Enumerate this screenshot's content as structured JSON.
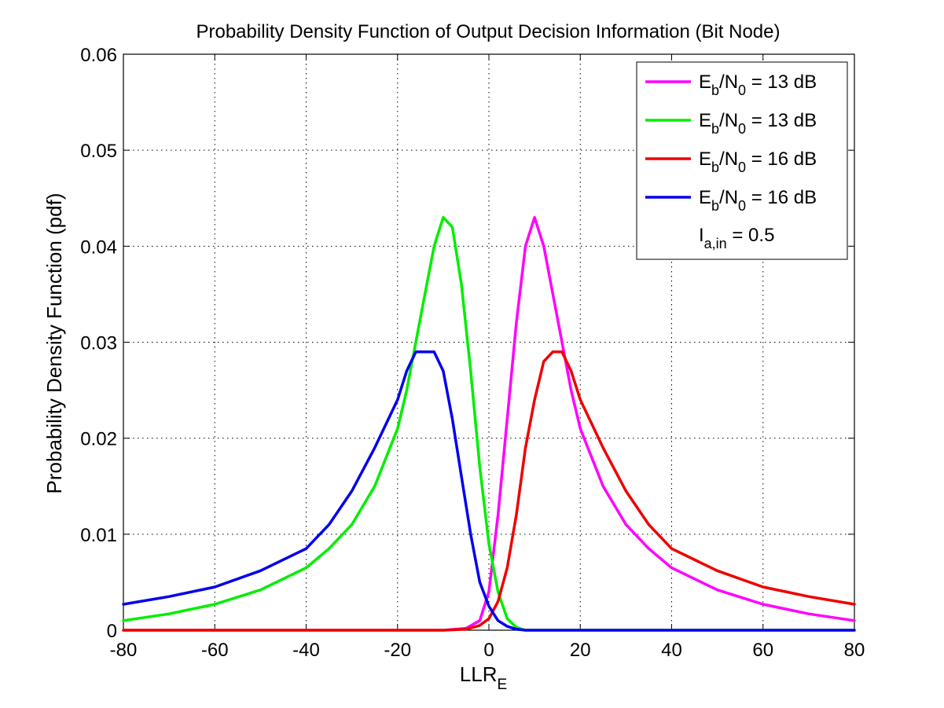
{
  "chart_data": {
    "type": "line",
    "title": "Probability Density Function of Output Decision Information (Bit Node)",
    "xlabel": "LLR",
    "xlabel_sub": "E",
    "ylabel": "Probability Density Function (pdf)",
    "xlim": [
      -80,
      80
    ],
    "ylim": [
      0,
      0.06
    ],
    "grid": true,
    "legend_position": "top-right",
    "x_ticks": [
      "-80",
      "-60",
      "-40",
      "-20",
      "0",
      "20",
      "40",
      "60",
      "80"
    ],
    "y_ticks": [
      "0",
      "0.01",
      "0.02",
      "0.03",
      "0.04",
      "0.05",
      "0.06"
    ],
    "series": [
      {
        "label_main": "E",
        "label_sub1": "b",
        "label_mid": "/N",
        "label_sub2": "0",
        "label_tail": " = 13 dB",
        "color": "#ff00ff",
        "x": [
          -80,
          -20,
          -10,
          -5,
          -2,
          0,
          2,
          4,
          6,
          8,
          10,
          12,
          14,
          16,
          18,
          20,
          25,
          30,
          35,
          40,
          50,
          60,
          70,
          80
        ],
        "y": [
          0,
          0,
          0,
          0.0002,
          0.001,
          0.004,
          0.012,
          0.022,
          0.032,
          0.04,
          0.043,
          0.04,
          0.035,
          0.03,
          0.025,
          0.021,
          0.015,
          0.011,
          0.0085,
          0.0065,
          0.0042,
          0.0027,
          0.0017,
          0.001
        ]
      },
      {
        "label_main": "E",
        "label_sub1": "b",
        "label_mid": "/N",
        "label_sub2": "0",
        "label_tail": " = 13 dB",
        "color": "#00ee00",
        "x": [
          -80,
          -70,
          -60,
          -50,
          -40,
          -35,
          -30,
          -25,
          -20,
          -18,
          -16,
          -14,
          -12,
          -10,
          -8,
          -6,
          -4,
          -2,
          0,
          2,
          4,
          6,
          8,
          10,
          80
        ],
        "y": [
          0.001,
          0.0017,
          0.0027,
          0.0042,
          0.0065,
          0.0085,
          0.011,
          0.015,
          0.021,
          0.025,
          0.03,
          0.035,
          0.04,
          0.043,
          0.042,
          0.036,
          0.027,
          0.017,
          0.009,
          0.004,
          0.0012,
          0.0003,
          0,
          0,
          0
        ]
      },
      {
        "label_main": "E",
        "label_sub1": "b",
        "label_mid": "/N",
        "label_sub2": "0",
        "label_tail": " = 16 dB",
        "color": "#ee0000",
        "x": [
          -80,
          -10,
          -5,
          -2,
          0,
          2,
          4,
          6,
          8,
          10,
          12,
          14,
          16,
          18,
          20,
          25,
          30,
          35,
          40,
          50,
          60,
          70,
          80
        ],
        "y": [
          0,
          0,
          0.0001,
          0.0005,
          0.0012,
          0.003,
          0.0065,
          0.012,
          0.019,
          0.024,
          0.028,
          0.029,
          0.029,
          0.027,
          0.024,
          0.019,
          0.0145,
          0.011,
          0.0085,
          0.0062,
          0.0045,
          0.0035,
          0.0027
        ]
      },
      {
        "label_main": "E",
        "label_sub1": "b",
        "label_mid": "/N",
        "label_sub2": "0",
        "label_tail": " = 16 dB",
        "color": "#0000ee",
        "x": [
          -80,
          -70,
          -60,
          -50,
          -40,
          -35,
          -30,
          -25,
          -20,
          -18,
          -16,
          -14,
          -12,
          -10,
          -8,
          -6,
          -4,
          -2,
          0,
          2,
          4,
          6,
          8,
          10,
          80
        ],
        "y": [
          0.0027,
          0.0035,
          0.0045,
          0.0062,
          0.0085,
          0.011,
          0.0145,
          0.019,
          0.024,
          0.027,
          0.029,
          0.029,
          0.029,
          0.027,
          0.022,
          0.016,
          0.01,
          0.005,
          0.0025,
          0.001,
          0.0004,
          0.0001,
          0,
          0,
          0
        ]
      }
    ],
    "legend_note": {
      "main": "I",
      "sub": "a,in",
      "tail": " = 0.5"
    }
  }
}
